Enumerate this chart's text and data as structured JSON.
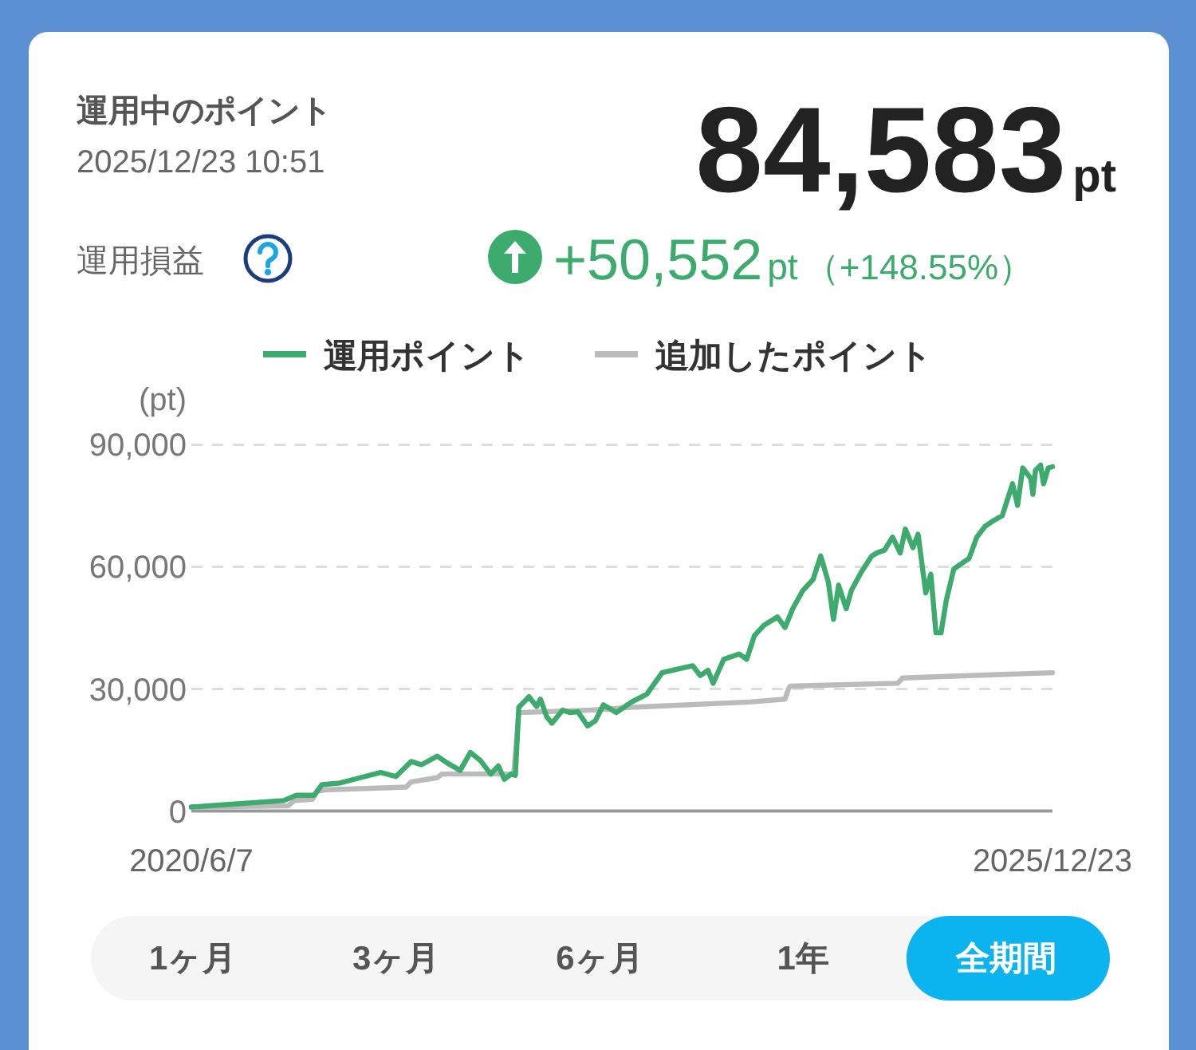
{
  "chart_data": {
    "type": "line",
    "title": "運用中のポイント",
    "subtitle": "2025/12/23 10:51",
    "ylabel": "(pt)",
    "annotations": [
      "84,583",
      "pt",
      "運用損益",
      "+50,552",
      "pt",
      "（+148.55%）",
      "1ヶ月",
      "3ヶ月",
      "6ヶ月",
      "1年",
      "全期間"
    ],
    "xlim": [
      "2020-06-07",
      "2025-12-23"
    ],
    "xticks": [
      {
        "value": "2020-06-07",
        "label": "2020/6/7"
      },
      {
        "value": "2025-12-23",
        "label": "2025/12/23"
      }
    ],
    "ylim": [
      0,
      90000
    ],
    "yticks": [
      0,
      {
        "value": 30000,
        "label": "30,000"
      },
      {
        "value": 60000,
        "label": "60,000"
      },
      {
        "value": 90000,
        "label": "90,000"
      }
    ],
    "grid": "y",
    "legend": "top",
    "series": [
      {
        "name": "運用ポイント",
        "color": "#3dab6e",
        "x": [
          "2020-06-07",
          "2021-01-10",
          "2021-02-09",
          "2021-03-23",
          "2021-04-10",
          "2021-05-22",
          "2021-07-09",
          "2021-08-26",
          "2021-10-01",
          "2021-11-06",
          "2021-11-30",
          "2022-01-06",
          "2022-01-30",
          "2022-03-01",
          "2022-03-25",
          "2022-04-18",
          "2022-05-12",
          "2022-05-30",
          "2022-06-13",
          "2022-06-29",
          "2022-07-09",
          "2022-07-17",
          "2022-08-10",
          "2022-08-28",
          "2022-09-06",
          "2022-09-21",
          "2022-10-03",
          "2022-10-28",
          "2022-11-15",
          "2022-12-03",
          "2022-12-26",
          "2023-01-13",
          "2023-02-01",
          "2023-03-03",
          "2023-04-08",
          "2023-05-14",
          "2023-06-19",
          "2023-07-25",
          "2023-08-30",
          "2023-09-17",
          "2023-10-05",
          "2023-10-17",
          "2023-11-11",
          "2023-12-17",
          "2024-01-04",
          "2024-01-22",
          "2024-02-14",
          "2024-03-16",
          "2024-04-03",
          "2024-04-21",
          "2024-05-15",
          "2024-06-08",
          "2024-06-26",
          "2024-07-14",
          "2024-07-26",
          "2024-08-07",
          "2024-08-25",
          "2024-09-06",
          "2024-09-30",
          "2024-10-24",
          "2024-11-05",
          "2024-11-23",
          "2024-12-12",
          "2024-12-30",
          "2025-01-11",
          "2025-01-29",
          "2025-02-10",
          "2025-02-28",
          "2025-03-12",
          "2025-03-24",
          "2025-04-05",
          "2025-04-17",
          "2025-05-05",
          "2025-05-23",
          "2025-06-10",
          "2025-06-28",
          "2025-07-17",
          "2025-08-04",
          "2025-08-27",
          "2025-09-08",
          "2025-09-20",
          "2025-10-02",
          "2025-10-14",
          "2025-11-02",
          "2025-11-07",
          "2025-11-13",
          "2025-11-25",
          "2025-12-02",
          "2025-12-13",
          "2025-12-23"
        ],
        "values": [
          1000,
          2600,
          3900,
          3900,
          6500,
          6900,
          8200,
          9500,
          8500,
          12200,
          11400,
          13500,
          11800,
          10000,
          14400,
          12400,
          9100,
          11100,
          7800,
          9100,
          8800,
          25500,
          28100,
          25700,
          27500,
          23100,
          21600,
          24800,
          24200,
          24400,
          20900,
          22200,
          26100,
          24200,
          26800,
          28700,
          34000,
          34900,
          35700,
          33300,
          34600,
          31400,
          37300,
          38600,
          37300,
          43100,
          45700,
          47700,
          45100,
          49700,
          54200,
          56900,
          62700,
          56200,
          47100,
          55500,
          49700,
          54200,
          58800,
          62700,
          63400,
          64100,
          67300,
          63400,
          69300,
          64700,
          68000,
          53600,
          58200,
          43800,
          43800,
          51600,
          59500,
          60800,
          62100,
          67300,
          69900,
          71200,
          72600,
          76500,
          80400,
          75100,
          84300,
          81700,
          77800,
          83700,
          85000,
          80400,
          84300,
          84600
        ]
      },
      {
        "name": "追加したポイント",
        "color": "#bbbbbb",
        "x": [
          "2020-06-07",
          "2021-01-21",
          "2021-02-04",
          "2021-03-19",
          "2021-03-29",
          "2021-04-16",
          "2021-10-25",
          "2021-11-06",
          "2022-01-06",
          "2022-01-17",
          "2022-07-05",
          "2022-07-17",
          "2023-01-02",
          "2023-04-08",
          "2024-01-10",
          "2024-04-03",
          "2024-04-11",
          "2024-04-15",
          "2024-12-24",
          "2025-01-04",
          "2025-12-23"
        ],
        "values": [
          1000,
          1300,
          2600,
          2900,
          4800,
          5200,
          5900,
          7200,
          8200,
          9100,
          9100,
          24200,
          24800,
          25500,
          26800,
          27500,
          30000,
          30700,
          31400,
          32700,
          34000
        ]
      }
    ]
  }
}
